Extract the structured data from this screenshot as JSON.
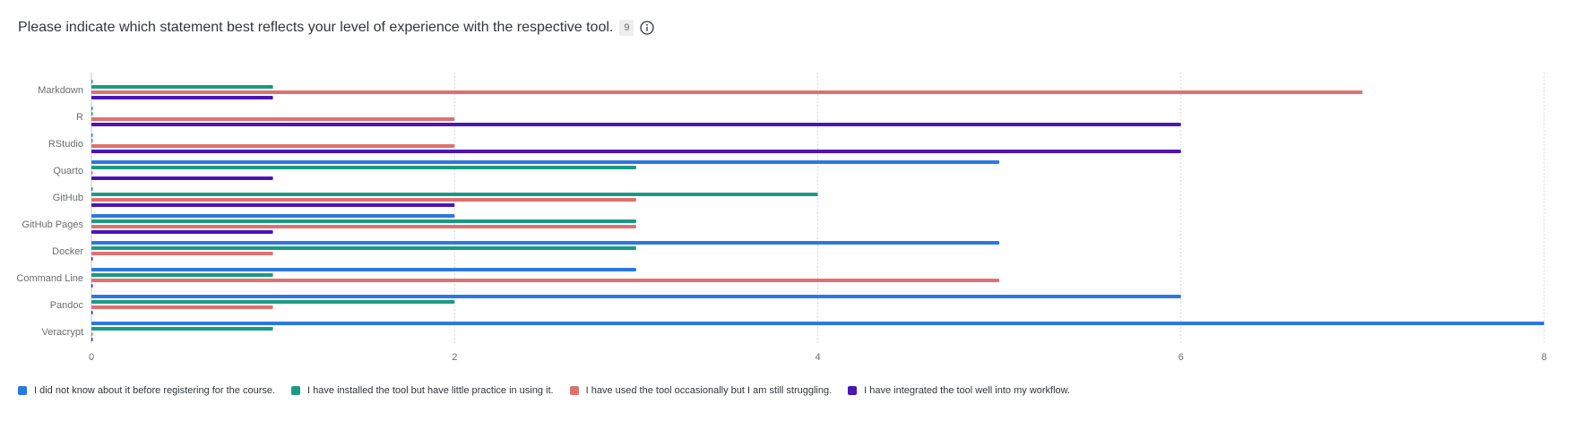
{
  "header": {
    "title": "Please indicate which statement best reflects your level of experience with the respective tool.",
    "count": "9",
    "info_icon": "info-icon"
  },
  "chart_data": {
    "type": "bar",
    "orientation": "horizontal",
    "categories": [
      "Markdown",
      "R",
      "RStudio",
      "Quarto",
      "GitHub",
      "GitHub Pages",
      "Docker",
      "Command Line",
      "Pandoc",
      "Veracrypt"
    ],
    "series": [
      {
        "name": "I did not know about it before registering for the course.",
        "color": "#2b78e4",
        "values": [
          0,
          0,
          0,
          5,
          0,
          2,
          5,
          3,
          6,
          8
        ]
      },
      {
        "name": "I have installed the tool but have little practice in using it.",
        "color": "#1a9a84",
        "values": [
          1,
          0,
          0,
          3,
          4,
          3,
          3,
          1,
          2,
          1
        ]
      },
      {
        "name": "I have used the tool occasionally but I am still struggling.",
        "color": "#e07070",
        "values": [
          7,
          2,
          2,
          0,
          3,
          3,
          1,
          5,
          1,
          0
        ]
      },
      {
        "name": "I have integrated the tool well into my workflow.",
        "color": "#4b16b8",
        "values": [
          1,
          6,
          6,
          1,
          2,
          1,
          0,
          0,
          0,
          0
        ]
      }
    ],
    "xlim": [
      0,
      8
    ],
    "xticks": [
      "0",
      "2",
      "4",
      "6",
      "8"
    ],
    "grid": true,
    "legend_position": "bottom-left"
  }
}
